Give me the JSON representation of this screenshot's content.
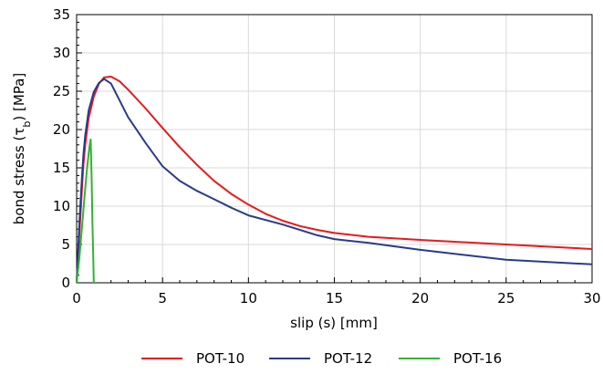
{
  "chart_data": {
    "type": "line",
    "xlabel": "slip (s) [mm]",
    "ylabel_main": "bond stress (τ",
    "ylabel_sub": "b",
    "ylabel_end": ") [MPa]",
    "xlim": [
      0,
      30
    ],
    "ylim": [
      0,
      35
    ],
    "x_ticks": [
      0,
      5,
      10,
      15,
      20,
      25,
      30
    ],
    "y_ticks": [
      0,
      5,
      10,
      15,
      20,
      25,
      30,
      35
    ],
    "grid": true,
    "legend_position": "bottom-center",
    "series": [
      {
        "name": "POT-10",
        "color": "#e8191c",
        "points": [
          [
            0,
            0
          ],
          [
            0.1,
            4
          ],
          [
            0.2,
            8
          ],
          [
            0.3,
            12
          ],
          [
            0.4,
            15.5
          ],
          [
            0.5,
            18
          ],
          [
            0.7,
            21.5
          ],
          [
            1.0,
            24.3
          ],
          [
            1.3,
            26
          ],
          [
            1.6,
            26.8
          ],
          [
            2.0,
            26.9
          ],
          [
            2.5,
            26.3
          ],
          [
            3,
            25.2
          ],
          [
            4,
            22.8
          ],
          [
            5,
            20.2
          ],
          [
            6,
            17.7
          ],
          [
            7,
            15.4
          ],
          [
            8,
            13.3
          ],
          [
            9,
            11.6
          ],
          [
            10,
            10.2
          ],
          [
            11,
            9
          ],
          [
            12,
            8.1
          ],
          [
            13,
            7.4
          ],
          [
            14,
            6.9
          ],
          [
            15,
            6.5
          ],
          [
            17,
            6
          ],
          [
            20,
            5.6
          ],
          [
            25,
            5
          ],
          [
            30,
            4.4
          ]
        ]
      },
      {
        "name": "POT-12",
        "color": "#2a3a8c",
        "points": [
          [
            0,
            0
          ],
          [
            0.1,
            5
          ],
          [
            0.2,
            9.5
          ],
          [
            0.3,
            13.5
          ],
          [
            0.4,
            16.8
          ],
          [
            0.5,
            19.2
          ],
          [
            0.7,
            22.5
          ],
          [
            1.0,
            24.9
          ],
          [
            1.3,
            26.1
          ],
          [
            1.6,
            26.6
          ],
          [
            2.0,
            26
          ],
          [
            2.5,
            23.8
          ],
          [
            3,
            21.6
          ],
          [
            4,
            18.3
          ],
          [
            5,
            15.2
          ],
          [
            6,
            13.3
          ],
          [
            7,
            12
          ],
          [
            8,
            10.9
          ],
          [
            9,
            9.8
          ],
          [
            10,
            8.8
          ],
          [
            12,
            7.6
          ],
          [
            14,
            6.2
          ],
          [
            15,
            5.7
          ],
          [
            17,
            5.2
          ],
          [
            20,
            4.3
          ],
          [
            25,
            3
          ],
          [
            30,
            2.4
          ]
        ]
      },
      {
        "name": "POT-16",
        "color": "#33b233",
        "points": [
          [
            0,
            0
          ],
          [
            0.15,
            3
          ],
          [
            0.3,
            7
          ],
          [
            0.45,
            11
          ],
          [
            0.6,
            14.8
          ],
          [
            0.75,
            17.8
          ],
          [
            0.82,
            18.7
          ],
          [
            0.87,
            14
          ],
          [
            0.92,
            8
          ],
          [
            0.97,
            3
          ],
          [
            1.0,
            0
          ]
        ]
      }
    ]
  }
}
